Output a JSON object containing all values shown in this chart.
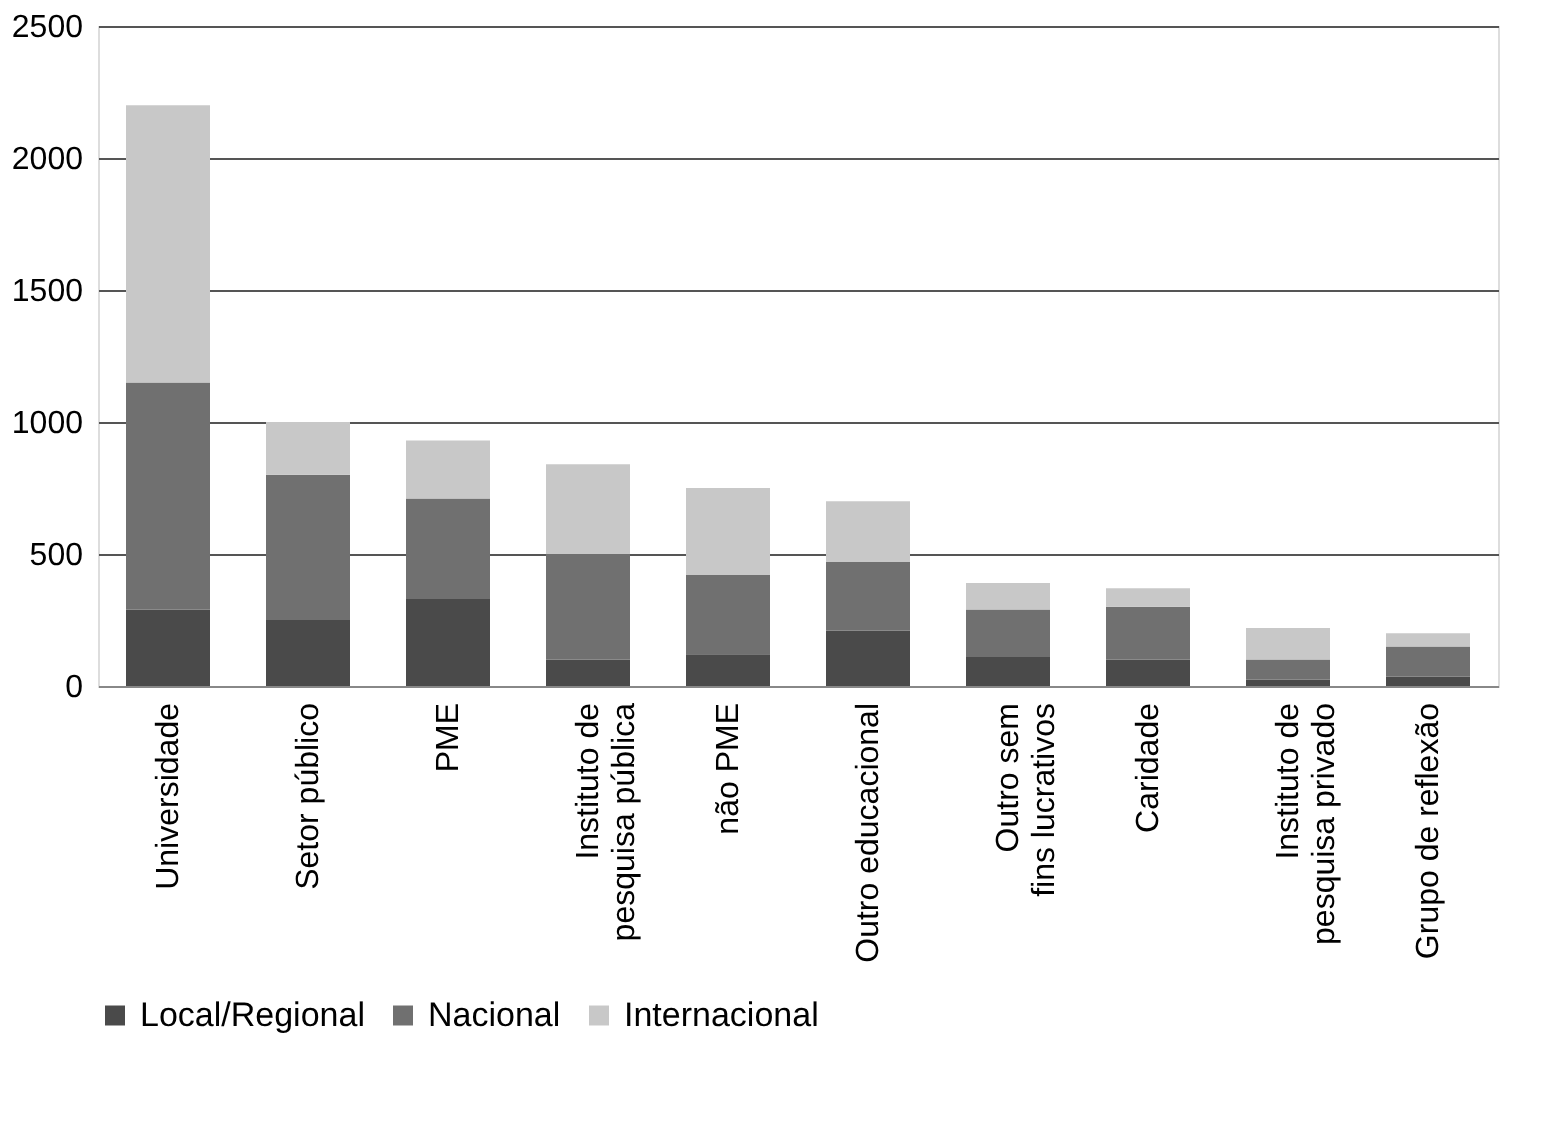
{
  "chart_data": {
    "type": "bar",
    "stacked": true,
    "categories": [
      "Universidade",
      "Setor público",
      "PME",
      "Instituto de\npesquisa pública",
      "não PME",
      "Outro educacional",
      "Outro sem\nfins lucrativos",
      "Caridade",
      "Instituto de\npesquisa privado",
      "Grupo de reflexão"
    ],
    "series": [
      {
        "name": "Local/Regional",
        "color": "#4a4a4a",
        "values": [
          290,
          250,
          330,
          100,
          120,
          210,
          110,
          100,
          25,
          35
        ]
      },
      {
        "name": "Nacional",
        "color": "#707070",
        "values": [
          860,
          550,
          380,
          400,
          300,
          260,
          180,
          200,
          75,
          115
        ]
      },
      {
        "name": "Internacional",
        "color": "#c8c8c8",
        "values": [
          1050,
          200,
          220,
          340,
          330,
          230,
          100,
          70,
          120,
          50
        ]
      }
    ],
    "ylim": [
      0,
      2500
    ],
    "yticks": [
      0,
      500,
      1000,
      1500,
      2000,
      2500
    ],
    "grid": "y",
    "legend": "bottom"
  }
}
